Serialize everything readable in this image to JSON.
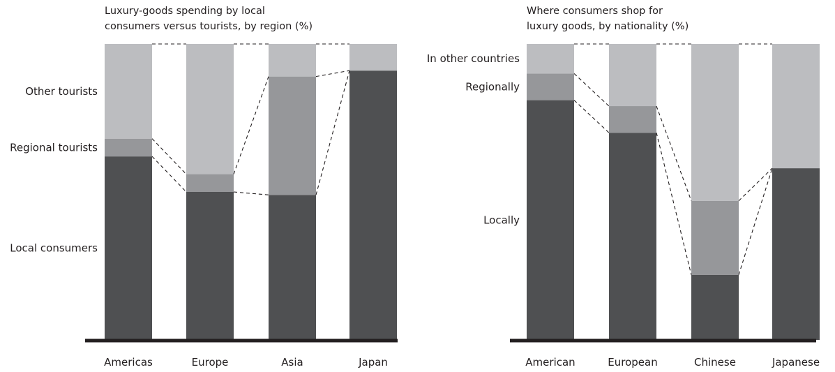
{
  "chart_data": [
    {
      "type": "bar",
      "stacked": true,
      "percent": true,
      "title_lines": [
        "Luxury-goods spending by local",
        "consumers versus tourists, by region (%)"
      ],
      "categories": [
        "Americas",
        "Europe",
        "Asia",
        "Japan"
      ],
      "series": [
        {
          "name": "Local consumers",
          "values": [
            62,
            50,
            49,
            91
          ],
          "color": "#4f5052"
        },
        {
          "name": "Regional tourists",
          "values": [
            6,
            6,
            40,
            0
          ],
          "color": "#96979a"
        },
        {
          "name": "Other tourists",
          "values": [
            32,
            44,
            11,
            9
          ],
          "color": "#bcbdc0"
        }
      ],
      "ylim": [
        0,
        100
      ],
      "connectors": "dashed",
      "grid": false,
      "legend": "left, series labels beside first bar"
    },
    {
      "type": "bar",
      "stacked": true,
      "percent": true,
      "title_lines": [
        "Where consumers shop for",
        "luxury goods, by nationality (%)"
      ],
      "categories": [
        "American",
        "European",
        "Chinese",
        "Japanese"
      ],
      "series": [
        {
          "name": "Locally",
          "values": [
            81,
            70,
            22,
            58
          ],
          "color": "#4f5052"
        },
        {
          "name": "Regionally",
          "values": [
            9,
            9,
            25,
            0
          ],
          "color": "#96979a"
        },
        {
          "name": "In other countries",
          "values": [
            10,
            21,
            53,
            42
          ],
          "color": "#bcbdc0"
        }
      ],
      "ylim": [
        0,
        100
      ],
      "connectors": "dashed",
      "grid": false,
      "legend": "left, series labels beside first bar"
    }
  ]
}
